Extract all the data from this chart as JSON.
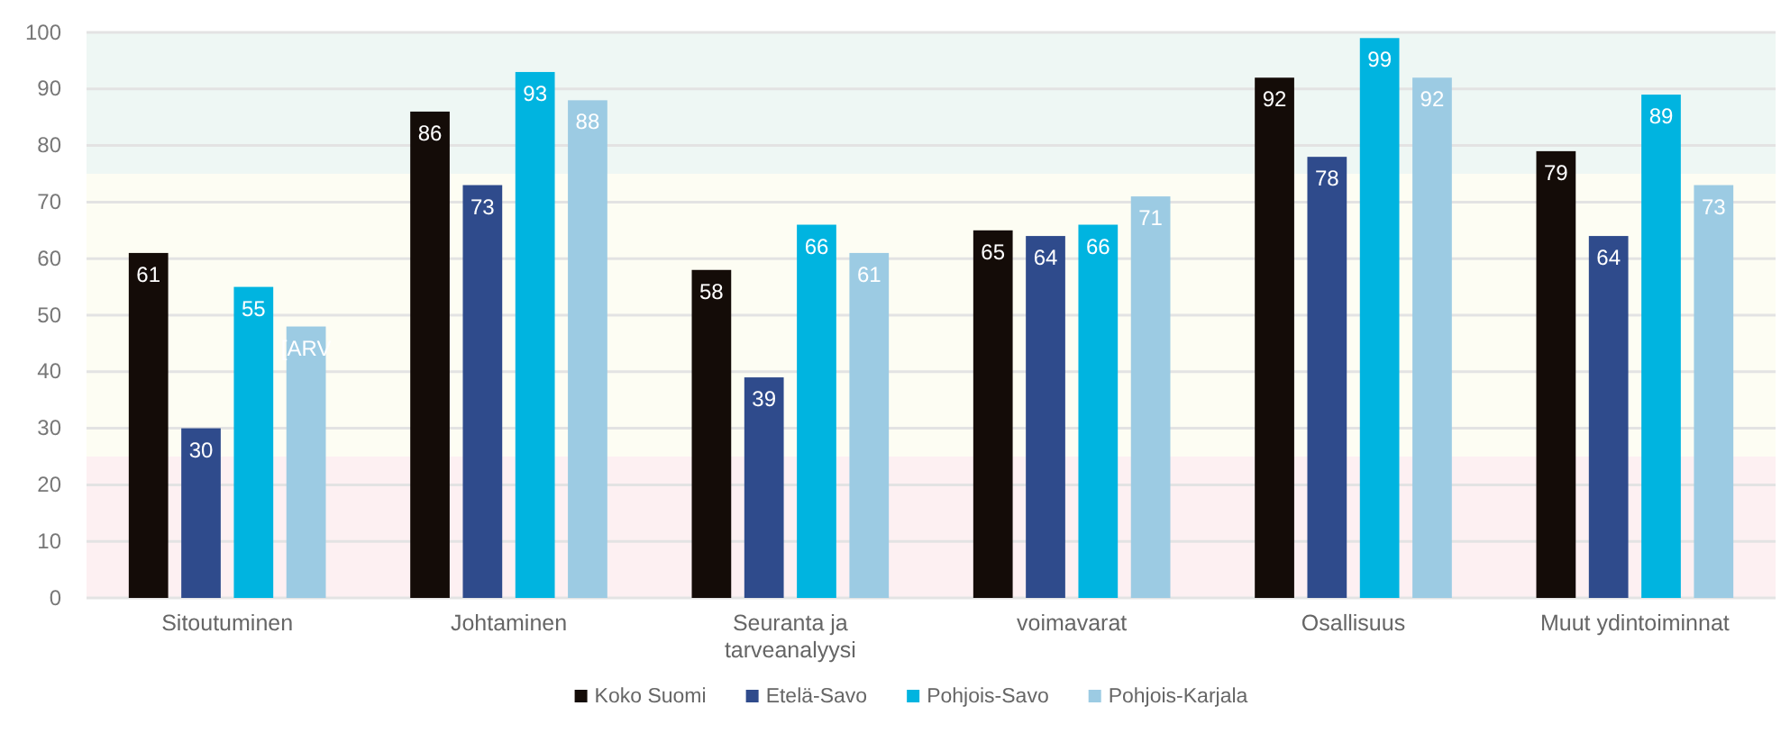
{
  "chart_data": {
    "type": "bar",
    "categories": [
      "Sitoutuminen",
      "Johtaminen",
      "Seuranta ja tarveanalyysi",
      "voimavarat",
      "Osallisuus",
      "Muut ydintoiminnat"
    ],
    "series": [
      {
        "name": "Koko Suomi",
        "color": "#140c08",
        "values": [
          61,
          86,
          58,
          65,
          92,
          79
        ]
      },
      {
        "name": "Etelä-Savo",
        "color": "#2f4b8c",
        "values": [
          30,
          73,
          39,
          64,
          78,
          64
        ]
      },
      {
        "name": "Pohjois-Savo",
        "color": "#00b4e0",
        "values": [
          55,
          93,
          66,
          66,
          99,
          89
        ]
      },
      {
        "name": "Pohjois-Karjala",
        "color": "#9ccbe3",
        "values": [
          48,
          88,
          61,
          71,
          92,
          73
        ],
        "value_labels": [
          "[ARV",
          "88",
          "61",
          "71",
          "92",
          "73"
        ]
      }
    ],
    "ylim": [
      0,
      100
    ],
    "yticks": [
      0,
      10,
      20,
      30,
      40,
      50,
      60,
      70,
      80,
      90,
      100
    ],
    "grid": "y",
    "legend": "bottom",
    "data_labels": true,
    "bands": [
      {
        "axis": "y",
        "from": 0,
        "to": 25,
        "color": "#fdf0f2"
      },
      {
        "axis": "y",
        "from": 25,
        "to": 75,
        "color": "#fdfdf3"
      },
      {
        "axis": "y",
        "from": 75,
        "to": 100,
        "color": "#eef7f4"
      }
    ]
  }
}
